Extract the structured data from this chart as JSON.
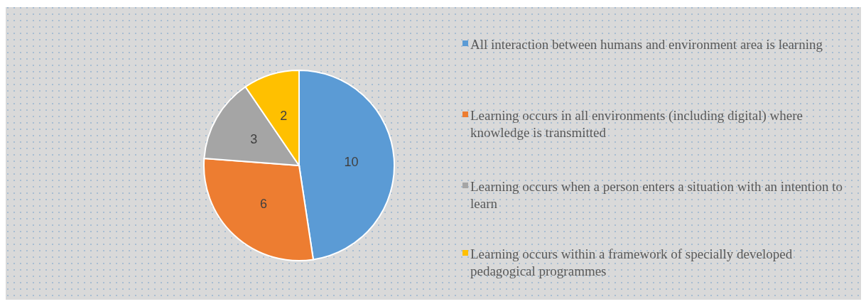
{
  "chart_data": {
    "type": "pie",
    "categories": [
      "All interaction between humans and environment area is learning",
      "Learning occurs in all environments (including digital) where knowledge is transmitted",
      "Learning occurs when a person enters a situation with an intention to learn",
      "Learning occurs within a framework of specially developed pedagogical programmes"
    ],
    "values": [
      10,
      6,
      3,
      2
    ],
    "colors": [
      "#5b9bd5",
      "#ed7d31",
      "#a5a5a5",
      "#ffc000"
    ],
    "data_labels": true,
    "legend": "right"
  }
}
